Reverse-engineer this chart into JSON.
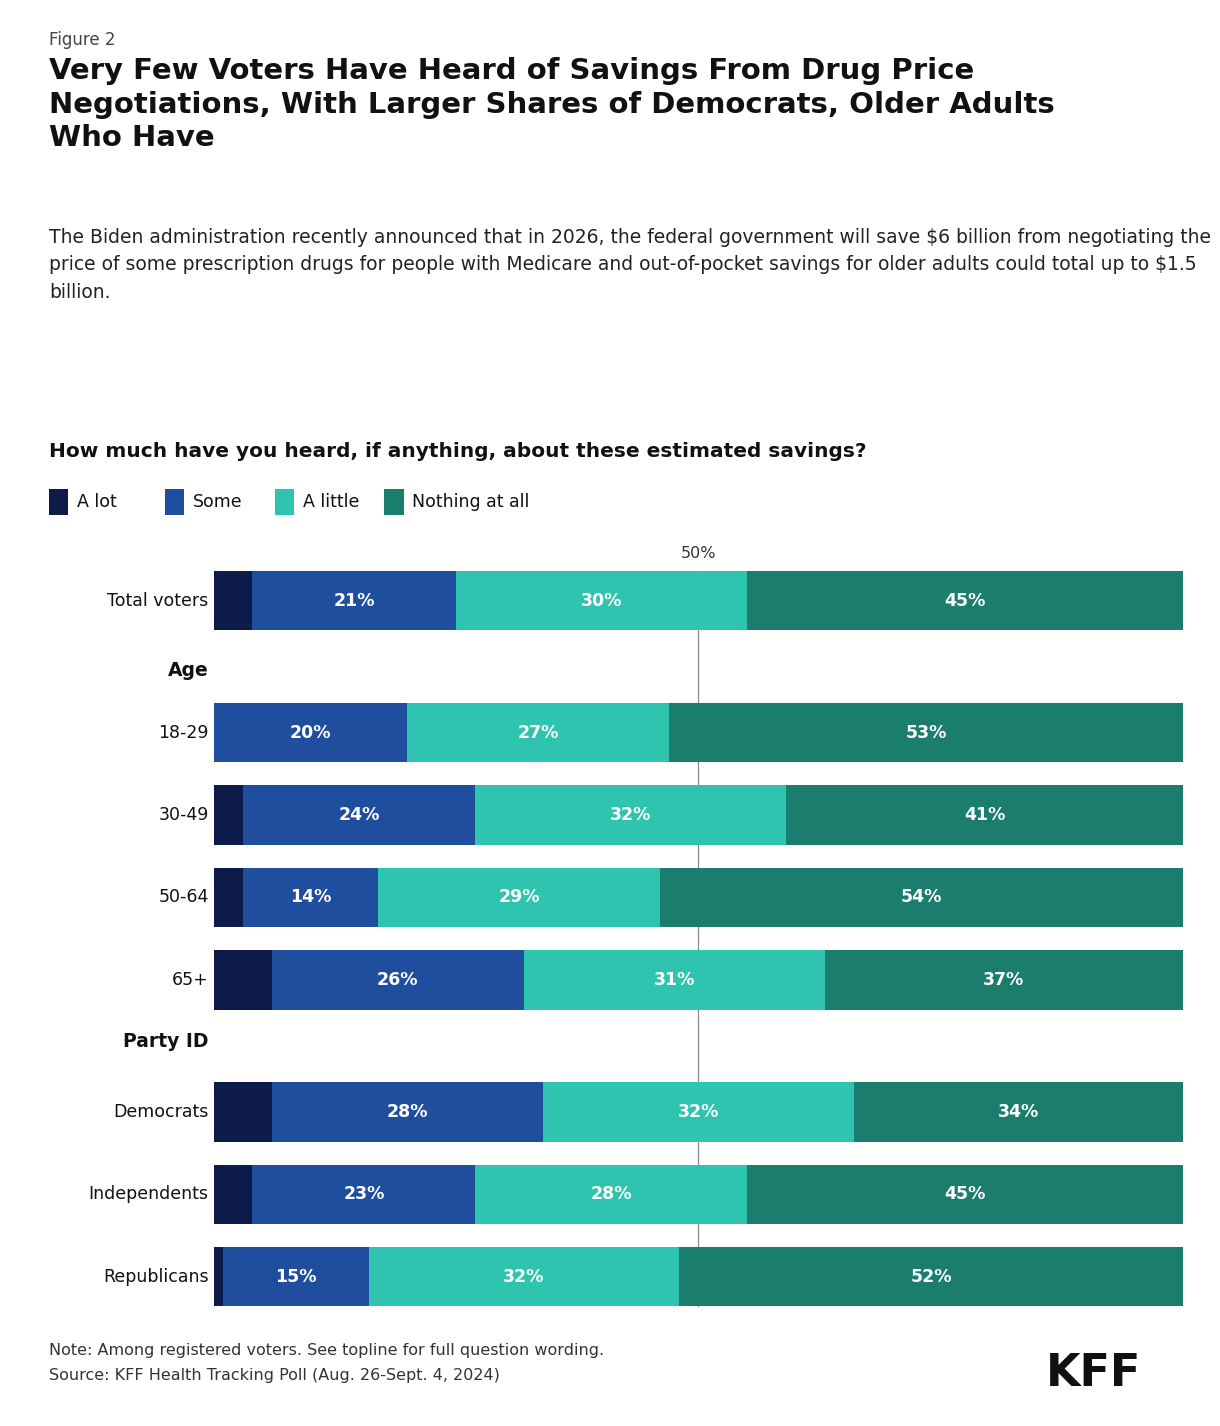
{
  "figure_label": "Figure 2",
  "title": "Very Few Voters Have Heard of Savings From Drug Price\nNegotiations, With Larger Shares of Democrats, Older Adults\nWho Have",
  "subtitle": "The Biden administration recently announced that in 2026, the federal government will save $6 billion from negotiating the price of some prescription drugs for people with Medicare and out-of-pocket savings for older adults could total up to $1.5 billion.",
  "question": "How much have you heard, if anything, about these estimated savings?",
  "legend_labels": [
    "A lot",
    "Some",
    "A little",
    "Nothing at all"
  ],
  "colors": [
    "#0d1b4b",
    "#1f4e9e",
    "#2ec4b0",
    "#1a7d6e"
  ],
  "categories": [
    "Total voters",
    "18-29",
    "30-49",
    "50-64",
    "65+",
    "Democrats",
    "Independents",
    "Republicans"
  ],
  "is_header": [
    false,
    false,
    false,
    false,
    false,
    false,
    false,
    false
  ],
  "section_headers": {
    "18-29": "Age",
    "Democrats": "Party ID"
  },
  "data": {
    "Total voters": [
      4,
      21,
      30,
      45
    ],
    "18-29": [
      0,
      20,
      27,
      53
    ],
    "30-49": [
      3,
      24,
      32,
      41
    ],
    "50-64": [
      3,
      14,
      29,
      54
    ],
    "65+": [
      6,
      26,
      31,
      37
    ],
    "Democrats": [
      6,
      28,
      32,
      34
    ],
    "Independents": [
      4,
      23,
      28,
      45
    ],
    "Republicans": [
      1,
      15,
      32,
      52
    ]
  },
  "note": "Note: Among registered voters. See topline for full question wording.",
  "source": "Source: KFF Health Tracking Poll (Aug. 26-Sept. 4, 2024)",
  "bg_color": "#ffffff"
}
